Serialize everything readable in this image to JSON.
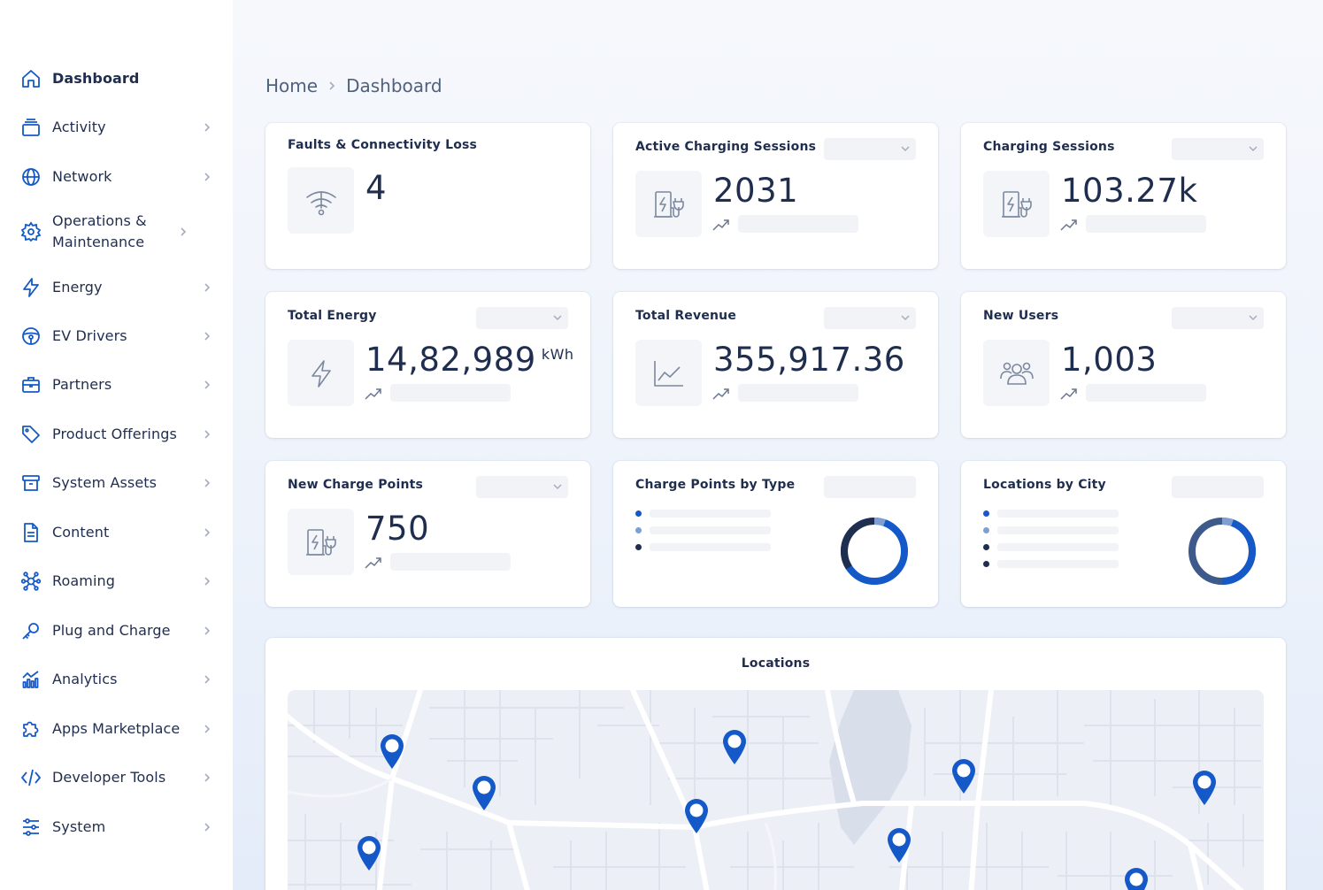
{
  "sidebar": {
    "items": [
      {
        "label": "Dashboard",
        "icon": "home-icon"
      },
      {
        "label": "Activity",
        "icon": "layers-icon"
      },
      {
        "label": "Network",
        "icon": "globe-icon"
      },
      {
        "label": "Operations & Maintenance",
        "icon": "gear-icon"
      },
      {
        "label": "Energy",
        "icon": "lightning-icon"
      },
      {
        "label": "EV Drivers",
        "icon": "steering-wheel-icon"
      },
      {
        "label": "Partners",
        "icon": "briefcase-icon"
      },
      {
        "label": "Product Offerings",
        "icon": "tag-icon"
      },
      {
        "label": "System Assets",
        "icon": "archive-icon"
      },
      {
        "label": "Content",
        "icon": "document-icon"
      },
      {
        "label": "Roaming",
        "icon": "network-nodes-icon"
      },
      {
        "label": "Plug and Charge",
        "icon": "key-icon"
      },
      {
        "label": "Analytics",
        "icon": "chart-icon"
      },
      {
        "label": "Apps Marketplace",
        "icon": "puzzle-icon"
      },
      {
        "label": "Developer Tools",
        "icon": "code-icon"
      },
      {
        "label": "System",
        "icon": "sliders-icon"
      }
    ]
  },
  "breadcrumb": {
    "home": "Home",
    "current": "Dashboard"
  },
  "cards": {
    "faults": {
      "title": "Faults & Connectivity Loss",
      "value": "4"
    },
    "active_sessions": {
      "title": "Active Charging Sessions",
      "value": "2031"
    },
    "charging_sessions": {
      "title": "Charging Sessions",
      "value": "103.27k"
    },
    "total_energy": {
      "title": "Total Energy",
      "value": "14,82,989",
      "unit": "kWh"
    },
    "total_revenue": {
      "title": "Total Revenue",
      "value": "355,917.36"
    },
    "new_users": {
      "title": "New Users",
      "value": "1,003"
    },
    "new_charge_points": {
      "title": "New Charge Points",
      "value": "750"
    },
    "charge_points_by_type": {
      "title": "Charge Points by Type"
    },
    "locations_by_city": {
      "title": "Locations by City"
    }
  },
  "map": {
    "title": "Locations"
  },
  "colors": {
    "accent": "#1459c7",
    "accent_light": "#7f9ed1",
    "navy": "#1f2d4e",
    "slate": "#3d5a8a"
  }
}
